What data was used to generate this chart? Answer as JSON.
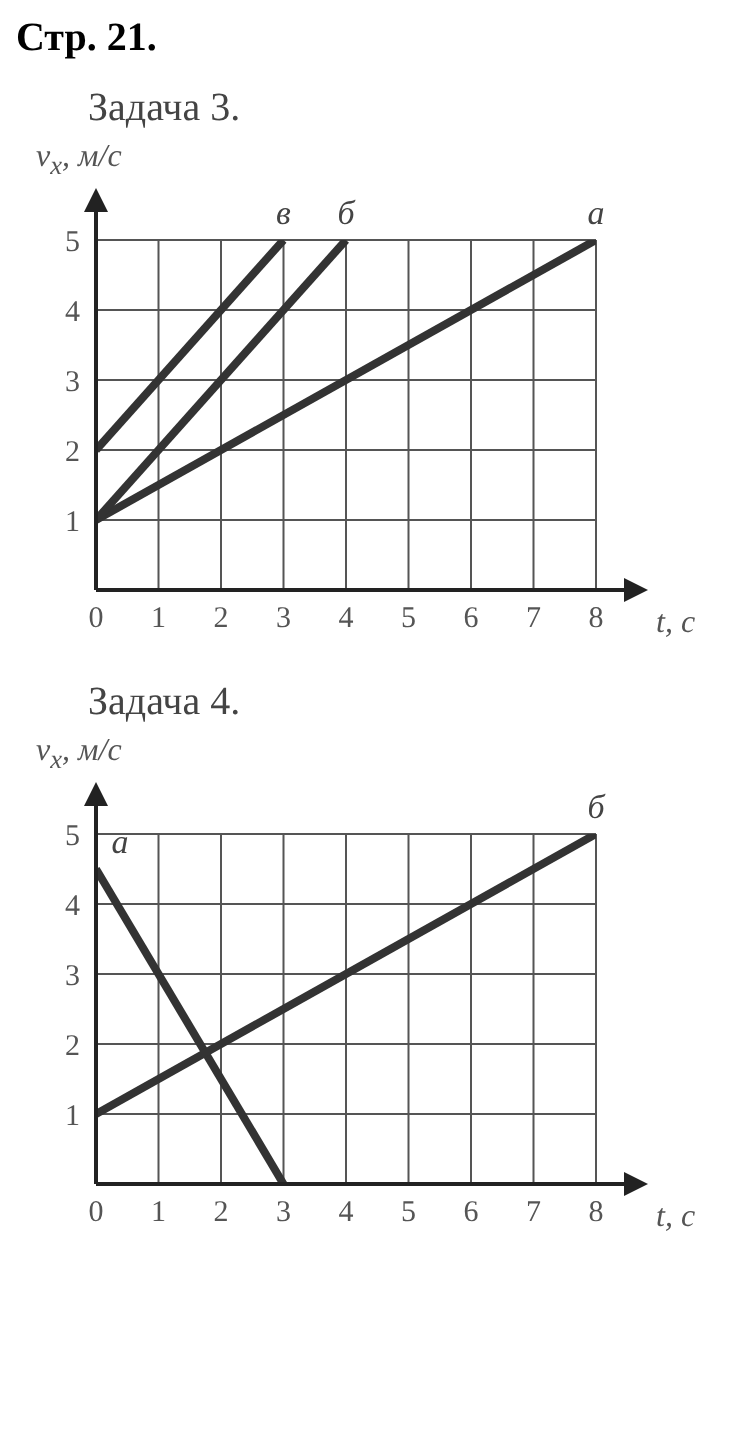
{
  "chart_data": [
    {
      "type": "line",
      "title": "Задача 3.",
      "annotations": [
        "Стр. 21."
      ],
      "xlabel": "t, с",
      "ylabel": "v$_{x}$, м/с",
      "xlim": [
        0,
        8
      ],
      "ylim": [
        0,
        5
      ],
      "xticks": [
        0,
        1,
        2,
        3,
        4,
        5,
        6,
        7,
        8
      ],
      "yticks": [
        1,
        2,
        3,
        4,
        5
      ],
      "grid": true,
      "legend": false,
      "marker": "none",
      "line_style": "solid",
      "series": [
        {
          "name": "а",
          "color": "#333333",
          "x": [
            0,
            8
          ],
          "values": [
            1,
            5
          ]
        },
        {
          "name": "б",
          "color": "#333333",
          "x": [
            0,
            4
          ],
          "values": [
            1,
            5
          ]
        },
        {
          "name": "в",
          "color": "#333333",
          "x": [
            0,
            3
          ],
          "values": [
            2,
            5
          ]
        }
      ]
    },
    {
      "type": "line",
      "title": "Задача 4.",
      "xlabel": "t, с",
      "ylabel": "v$_{x}$, м/с",
      "xlim": [
        0,
        8
      ],
      "ylim": [
        0,
        5
      ],
      "xticks": [
        0,
        1,
        2,
        3,
        4,
        5,
        6,
        7,
        8
      ],
      "yticks": [
        1,
        2,
        3,
        4,
        5
      ],
      "grid": true,
      "legend": false,
      "marker": "none",
      "line_style": "solid",
      "series": [
        {
          "name": "а",
          "color": "#333333",
          "x": [
            0,
            3
          ],
          "values": [
            4.5,
            0
          ]
        },
        {
          "name": "б",
          "color": "#333333",
          "x": [
            0,
            8
          ],
          "values": [
            1,
            5
          ]
        }
      ]
    }
  ]
}
